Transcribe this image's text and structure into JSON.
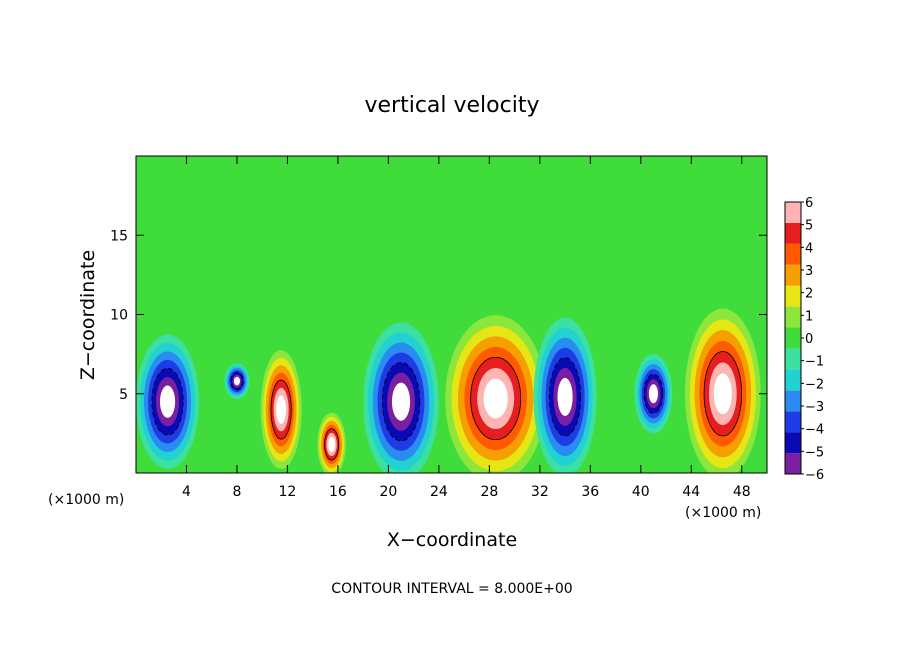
{
  "chart_data": {
    "type": "heatmap",
    "title": "vertical velocity",
    "xlabel": "X−coordinate",
    "ylabel": "Z−coordinate",
    "x_unit_left": "(×1000 m)",
    "x_unit_right": "(×1000 m)",
    "footer": "CONTOUR INTERVAL = 8.000E+00",
    "xlim": [
      0,
      50
    ],
    "ylim": [
      0,
      20
    ],
    "x_ticks": [
      4,
      8,
      12,
      16,
      20,
      24,
      28,
      32,
      36,
      40,
      44,
      48
    ],
    "x_tick_labels": [
      "4",
      "8",
      "12",
      "16",
      "20",
      "24",
      "28",
      "32",
      "36",
      "40",
      "44",
      "48"
    ],
    "y_ticks": [
      5,
      10,
      15
    ],
    "y_tick_labels": [
      "5",
      "10",
      "15"
    ],
    "colorbar": {
      "levels": [
        -6,
        -5,
        -4,
        -3,
        -2,
        -1,
        0,
        1,
        2,
        3,
        4,
        5,
        6
      ],
      "labels": [
        "−6",
        "−5",
        "−4",
        "−3",
        "−2",
        "−1",
        "0",
        "1",
        "2",
        "3",
        "4",
        "5",
        "6"
      ],
      "colors": [
        "#7a1fa2",
        "#0a0ab4",
        "#1e3ce6",
        "#2a8cf0",
        "#22d2d2",
        "#3ce0a0",
        "#3fdc3c",
        "#8ce63c",
        "#e6e614",
        "#f5a000",
        "#ff5a00",
        "#e61e1e",
        "#ffb4b4"
      ],
      "overflow_color": "#ffffff"
    },
    "features": [
      {
        "kind": "downdraft",
        "x": 2.5,
        "z": 4.5,
        "rx": 2.0,
        "rz": 3.4
      },
      {
        "kind": "updraft",
        "x": 11.5,
        "z": 4.0,
        "rx": 1.3,
        "rz": 3.0
      },
      {
        "kind": "updraft",
        "x": 15.5,
        "z": 1.8,
        "rx": 0.9,
        "rz": 1.6
      },
      {
        "kind": "downdraft",
        "x": 21.0,
        "z": 4.5,
        "rx": 2.4,
        "rz": 4.0
      },
      {
        "kind": "updraft",
        "x": 28.5,
        "z": 4.7,
        "rx": 3.2,
        "rz": 4.2
      },
      {
        "kind": "downdraft",
        "x": 34.0,
        "z": 4.8,
        "rx": 2.0,
        "rz": 4.0
      },
      {
        "kind": "downdraft",
        "x": 41.0,
        "z": 5.0,
        "rx": 1.2,
        "rz": 2.0
      },
      {
        "kind": "updraft",
        "x": 46.5,
        "z": 5.0,
        "rx": 2.4,
        "rz": 4.3
      },
      {
        "kind": "downdraft",
        "x": 8.0,
        "z": 5.8,
        "rx": 0.8,
        "rz": 0.9
      }
    ]
  }
}
